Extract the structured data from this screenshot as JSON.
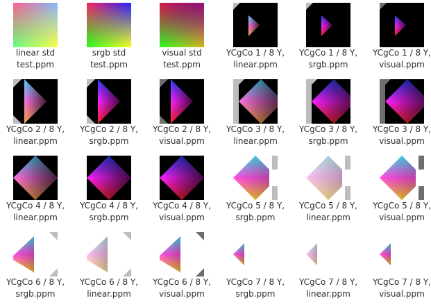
{
  "files": [
    {
      "line1": "linear std",
      "line2": "test.ppm",
      "kind": "std",
      "mode": "linear"
    },
    {
      "line1": "srgb std",
      "line2": "test.ppm",
      "kind": "std",
      "mode": "srgb"
    },
    {
      "line1": "visual std",
      "line2": "test.ppm",
      "kind": "std",
      "mode": "visual"
    },
    {
      "line1": "YCgCo 1 / 8 Y,",
      "line2": "linear.ppm",
      "kind": "y",
      "y": 1,
      "mode": "linear"
    },
    {
      "line1": "YCgCo 1 / 8 Y,",
      "line2": "srgb.ppm",
      "kind": "y",
      "y": 1,
      "mode": "srgb"
    },
    {
      "line1": "YCgCo 1 / 8 Y,",
      "line2": "visual.ppm",
      "kind": "y",
      "y": 1,
      "mode": "visual"
    },
    {
      "line1": "YCgCo 2 / 8 Y,",
      "line2": "linear.ppm",
      "kind": "y",
      "y": 2,
      "mode": "linear"
    },
    {
      "line1": "YCgCo 2 / 8 Y,",
      "line2": "srgb.ppm",
      "kind": "y",
      "y": 2,
      "mode": "srgb"
    },
    {
      "line1": "YCgCo 2 / 8 Y,",
      "line2": "visual.ppm",
      "kind": "y",
      "y": 2,
      "mode": "visual"
    },
    {
      "line1": "YCgCo 3 / 8 Y,",
      "line2": "linear.ppm",
      "kind": "y",
      "y": 3,
      "mode": "linear"
    },
    {
      "line1": "YCgCo 3 / 8 Y,",
      "line2": "srgb.ppm",
      "kind": "y",
      "y": 3,
      "mode": "srgb"
    },
    {
      "line1": "YCgCo 3 / 8 Y,",
      "line2": "visual.ppm",
      "kind": "y",
      "y": 3,
      "mode": "visual"
    },
    {
      "line1": "YCgCo 4 / 8 Y,",
      "line2": "linear.ppm",
      "kind": "y",
      "y": 4,
      "mode": "linear"
    },
    {
      "line1": "YCgCo 4 / 8 Y,",
      "line2": "srgb.ppm",
      "kind": "y",
      "y": 4,
      "mode": "srgb"
    },
    {
      "line1": "YCgCo 4 / 8 Y,",
      "line2": "visual.ppm",
      "kind": "y",
      "y": 4,
      "mode": "visual"
    },
    {
      "line1": "YCgCo 5 / 8 Y,",
      "line2": "srgb.ppm",
      "kind": "y",
      "y": 5,
      "mode": "srgb"
    },
    {
      "line1": "YCgCo 5 / 8 Y,",
      "line2": "linear.ppm",
      "kind": "y",
      "y": 5,
      "mode": "linear"
    },
    {
      "line1": "YCgCo 5 / 8 Y,",
      "line2": "visual.ppm",
      "kind": "y",
      "y": 5,
      "mode": "visual"
    },
    {
      "line1": "YCgCo 6 / 8 Y,",
      "line2": "srgb.ppm",
      "kind": "y",
      "y": 6,
      "mode": "srgb"
    },
    {
      "line1": "YCgCo 6 / 8 Y,",
      "line2": "linear.ppm",
      "kind": "y",
      "y": 6,
      "mode": "linear"
    },
    {
      "line1": "YCgCo 6 / 8 Y,",
      "line2": "visual.ppm",
      "kind": "y",
      "y": 6,
      "mode": "visual"
    },
    {
      "line1": "YCgCo 7 / 8 Y,",
      "line2": "srgb.ppm",
      "kind": "y",
      "y": 7,
      "mode": "srgb"
    },
    {
      "line1": "YCgCo 7 / 8 Y,",
      "line2": "linear.ppm",
      "kind": "y",
      "y": 7,
      "mode": "linear"
    },
    {
      "line1": "YCgCo 7 / 8 Y,",
      "line2": "visual.ppm",
      "kind": "y",
      "y": 7,
      "mode": "visual"
    }
  ]
}
